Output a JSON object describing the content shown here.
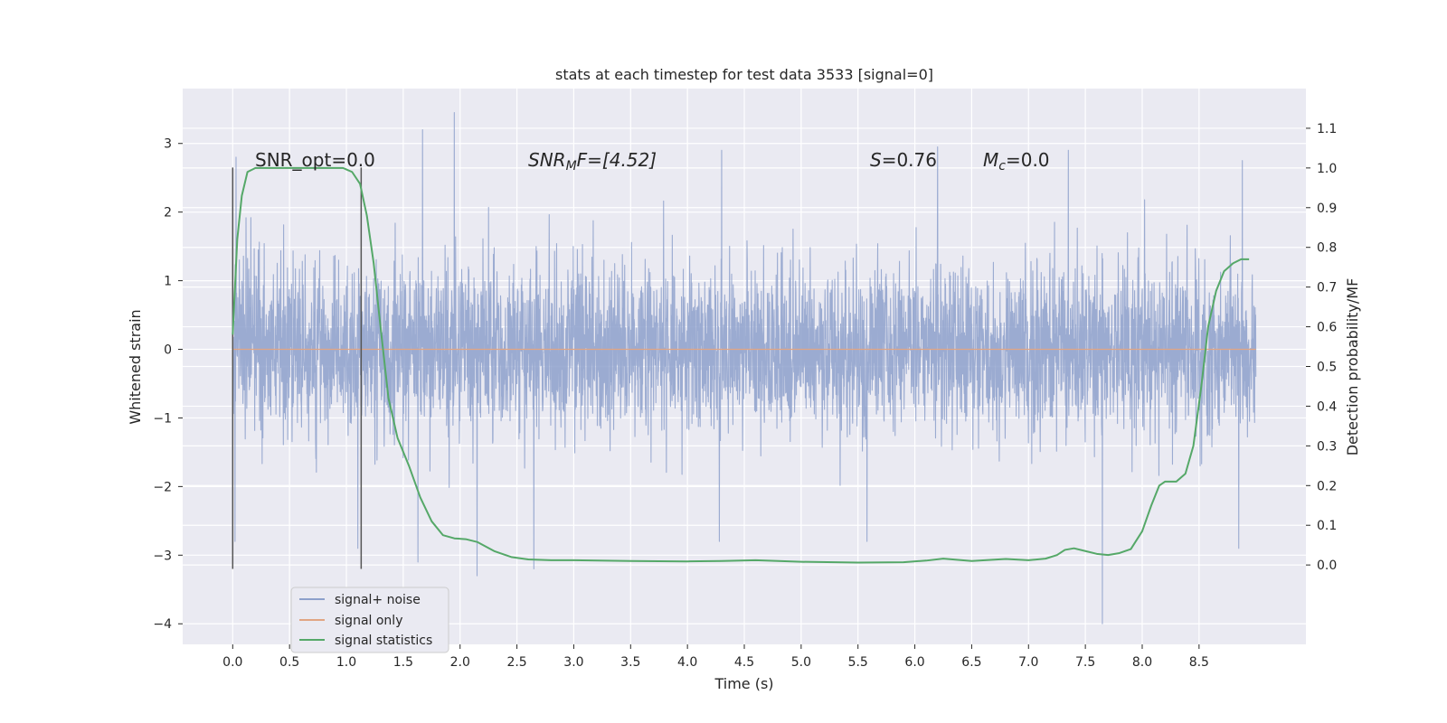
{
  "chart_data": {
    "type": "line",
    "title": "stats at each timestep for test data 3533 [signal=0]",
    "xlabel": "Time (s)",
    "ylabel": "Whitened strain",
    "y2label": "Detection probability/MF",
    "xlim": [
      -0.44,
      9.44
    ],
    "ylim": [
      -4.3,
      3.8
    ],
    "y2lim": [
      -0.2,
      1.2
    ],
    "x_ticks": [
      "0.0",
      "0.5",
      "1.0",
      "1.5",
      "2.0",
      "2.5",
      "3.0",
      "3.5",
      "4.0",
      "4.5",
      "5.0",
      "5.5",
      "6.0",
      "6.5",
      "7.0",
      "7.5",
      "8.0",
      "8.5"
    ],
    "y_ticks": [
      "3",
      "2",
      "1",
      "0",
      "−1",
      "−2",
      "−3",
      "−4"
    ],
    "y2_ticks": [
      "1.1",
      "1.0",
      "0.9",
      "0.8",
      "0.7",
      "0.6",
      "0.5",
      "0.4",
      "0.3",
      "0.2",
      "0.1",
      "0.0"
    ],
    "grid": true,
    "legend_position": "lower-left",
    "annotations": {
      "snr_opt": "SNR_opt=0.0",
      "snr_mf_pre": "SNR",
      "snr_mf_sub": "M",
      "snr_mf_post": "F=[4.52]",
      "s_pre": "S",
      "s_post": "=0.76",
      "mc_pre": "M",
      "mc_sub": "c",
      "mc_post": "=0.0"
    },
    "vertical_markers": [
      0.0,
      1.13
    ],
    "series": [
      {
        "name": "signal+ noise",
        "color": "#8da0cb",
        "t_start": 0.0,
        "t_end": 9.0,
        "sigma": 0.62,
        "peaks": [
          {
            "x": 0.03,
            "y": 2.8
          },
          {
            "x": 0.02,
            "y": -2.8
          },
          {
            "x": 1.1,
            "y": -2.9
          },
          {
            "x": 1.63,
            "y": -3.1
          },
          {
            "x": 1.67,
            "y": 3.2
          },
          {
            "x": 1.95,
            "y": 3.45
          },
          {
            "x": 2.15,
            "y": -3.3
          },
          {
            "x": 2.65,
            "y": -3.2
          },
          {
            "x": 4.3,
            "y": 2.9
          },
          {
            "x": 4.28,
            "y": -2.8
          },
          {
            "x": 5.58,
            "y": -2.8
          },
          {
            "x": 6.2,
            "y": 2.95
          },
          {
            "x": 7.35,
            "y": 2.9
          },
          {
            "x": 7.65,
            "y": -4.0
          },
          {
            "x": 8.88,
            "y": 2.75
          },
          {
            "x": 8.85,
            "y": -2.9
          }
        ]
      },
      {
        "name": "signal only",
        "color": "#e1a583",
        "t_start": 0.0,
        "t_end": 9.0,
        "value": 0.0
      },
      {
        "name": "signal statistics",
        "color": "#55a868",
        "points": [
          [
            0.0,
            0.58
          ],
          [
            0.04,
            0.82
          ],
          [
            0.08,
            0.93
          ],
          [
            0.13,
            0.99
          ],
          [
            0.2,
            1.0
          ],
          [
            0.35,
            1.0
          ],
          [
            0.6,
            1.0
          ],
          [
            0.85,
            1.0
          ],
          [
            0.97,
            1.0
          ],
          [
            1.05,
            0.99
          ],
          [
            1.12,
            0.96
          ],
          [
            1.18,
            0.88
          ],
          [
            1.24,
            0.76
          ],
          [
            1.3,
            0.6
          ],
          [
            1.37,
            0.42
          ],
          [
            1.45,
            0.32
          ],
          [
            1.55,
            0.25
          ],
          [
            1.65,
            0.17
          ],
          [
            1.75,
            0.11
          ],
          [
            1.85,
            0.075
          ],
          [
            1.95,
            0.067
          ],
          [
            2.05,
            0.065
          ],
          [
            2.15,
            0.058
          ],
          [
            2.3,
            0.035
          ],
          [
            2.45,
            0.02
          ],
          [
            2.6,
            0.014
          ],
          [
            2.8,
            0.012
          ],
          [
            3.0,
            0.012
          ],
          [
            3.5,
            0.01
          ],
          [
            4.0,
            0.009
          ],
          [
            4.3,
            0.01
          ],
          [
            4.6,
            0.012
          ],
          [
            5.0,
            0.008
          ],
          [
            5.5,
            0.006
          ],
          [
            5.9,
            0.007
          ],
          [
            6.1,
            0.011
          ],
          [
            6.25,
            0.016
          ],
          [
            6.5,
            0.01
          ],
          [
            6.8,
            0.015
          ],
          [
            7.0,
            0.012
          ],
          [
            7.15,
            0.016
          ],
          [
            7.25,
            0.025
          ],
          [
            7.32,
            0.038
          ],
          [
            7.4,
            0.042
          ],
          [
            7.5,
            0.035
          ],
          [
            7.6,
            0.028
          ],
          [
            7.7,
            0.025
          ],
          [
            7.8,
            0.03
          ],
          [
            7.9,
            0.04
          ],
          [
            8.0,
            0.085
          ],
          [
            8.08,
            0.15
          ],
          [
            8.15,
            0.2
          ],
          [
            8.2,
            0.21
          ],
          [
            8.3,
            0.21
          ],
          [
            8.38,
            0.23
          ],
          [
            8.45,
            0.3
          ],
          [
            8.52,
            0.45
          ],
          [
            8.58,
            0.6
          ],
          [
            8.65,
            0.69
          ],
          [
            8.72,
            0.74
          ],
          [
            8.8,
            0.76
          ],
          [
            8.87,
            0.77
          ],
          [
            8.94,
            0.77
          ]
        ]
      }
    ]
  }
}
